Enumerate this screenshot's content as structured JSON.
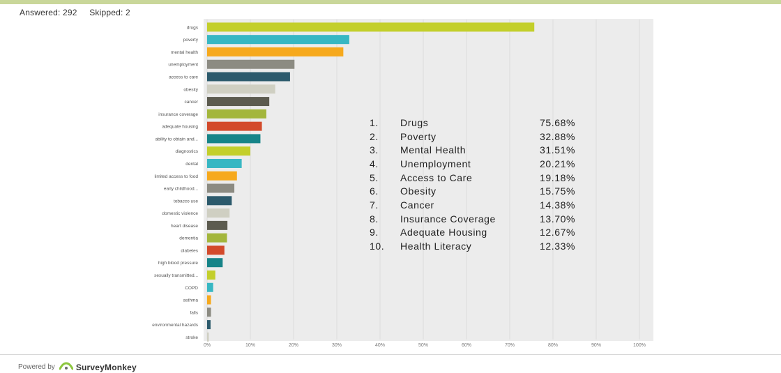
{
  "header": {
    "answered": "Answered: 292",
    "skipped": "Skipped: 2"
  },
  "footer": {
    "powered_by": "Powered by",
    "brand": "SurveyMonkey"
  },
  "top_list": [
    {
      "rank": "1.",
      "name": "Drugs",
      "pct": "75.68%"
    },
    {
      "rank": "2.",
      "name": "Poverty",
      "pct": "32.88%"
    },
    {
      "rank": "3.",
      "name": "Mental Health",
      "pct": "31.51%"
    },
    {
      "rank": "4.",
      "name": "Unemployment",
      "pct": "20.21%"
    },
    {
      "rank": "5.",
      "name": "Access to Care",
      "pct": "19.18%"
    },
    {
      "rank": "6.",
      "name": "Obesity",
      "pct": "15.75%"
    },
    {
      "rank": "7.",
      "name": "Cancer",
      "pct": "14.38%"
    },
    {
      "rank": "8.",
      "name": "Insurance Coverage",
      "pct": "13.70%"
    },
    {
      "rank": "9.",
      "name": "Adequate Housing",
      "pct": "12.67%"
    },
    {
      "rank": "10.",
      "name": "Health Literacy",
      "pct": "12.33%"
    }
  ],
  "chart_data": {
    "type": "bar",
    "orientation": "horizontal",
    "x_ticks": [
      "0%",
      "10%",
      "20%",
      "30%",
      "40%",
      "50%",
      "60%",
      "70%",
      "80%",
      "90%",
      "100%"
    ],
    "xlim": [
      0,
      100
    ],
    "grid": true,
    "categories": [
      "drugs",
      "poverty",
      "mental health",
      "unemployment",
      "access to care",
      "obesity",
      "cancer",
      "insurance coverage",
      "adequate housing",
      "ability to obtain and...",
      "diagnostics",
      "dental",
      "limited access to food",
      "early childhood...",
      "tobacco use",
      "domestic violence",
      "heart disease",
      "dementia",
      "diabetes",
      "high blood pressure",
      "sexually transmitted...",
      "COPD",
      "asthma",
      "falls",
      "environmental hazards",
      "stroke"
    ],
    "values": [
      75.68,
      32.88,
      31.51,
      20.21,
      19.18,
      15.75,
      14.38,
      13.7,
      12.67,
      12.33,
      10.0,
      8.0,
      6.9,
      6.3,
      5.7,
      5.2,
      4.7,
      4.6,
      4.0,
      3.6,
      1.9,
      1.4,
      0.9,
      0.9,
      0.8,
      0.4
    ],
    "colors": [
      "#c3cf2b",
      "#37b7c3",
      "#f6a91d",
      "#8c8b82",
      "#2c5a6c",
      "#cfcfc2",
      "#5c5b4f",
      "#a3b63c",
      "#d34a2b",
      "#168488"
    ]
  }
}
